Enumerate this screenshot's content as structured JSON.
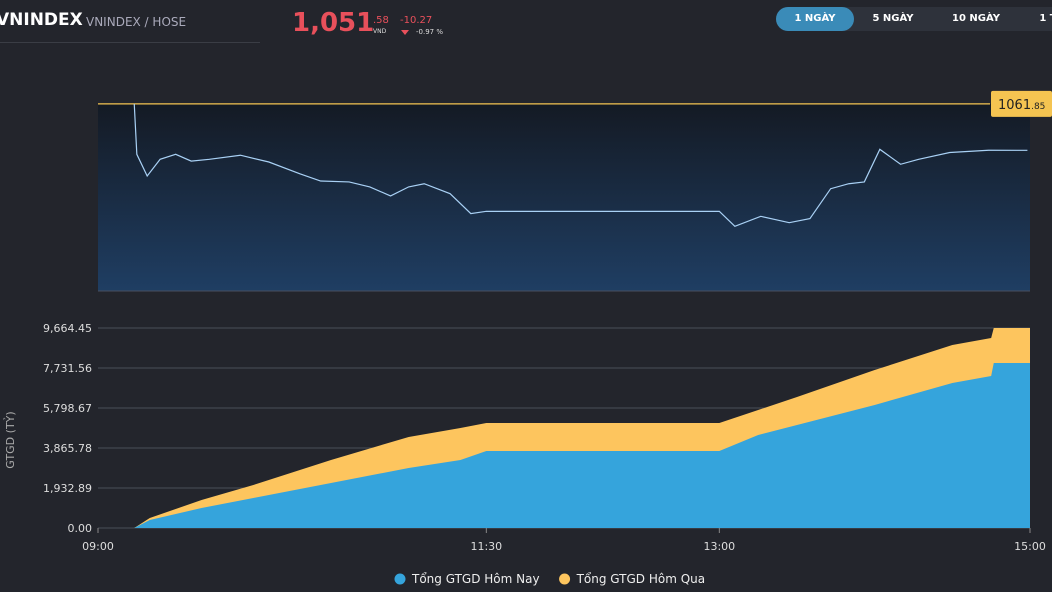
{
  "header": {
    "symbol": "VNINDEX",
    "exchange": "VNINDEX / HOSE",
    "price": "1,051",
    "price_decimal": ".58",
    "unit": "VND",
    "change": "-10.27",
    "change_pct": "-0.97 %"
  },
  "tabs": [
    "1 NGÀY",
    "5 NGÀY",
    "10 NGÀY",
    "1 T"
  ],
  "chart_data": [
    {
      "type": "line",
      "reference": {
        "value": 1061.85,
        "label": "1061",
        "label_decimal": ".85",
        "color": "#f5c451"
      },
      "x": [
        "09:14",
        "09:15",
        "09:19",
        "09:24",
        "09:30",
        "09:36",
        "09:43",
        "09:55",
        "10:06",
        "10:18",
        "10:26",
        "10:37",
        "10:45",
        "10:53",
        "11:00",
        "11:06",
        "11:16",
        "11:24",
        "11:30",
        "13:00",
        "13:06",
        "13:16",
        "13:27",
        "13:35",
        "13:43",
        "13:50",
        "13:56",
        "14:02",
        "14:10",
        "14:17",
        "14:29",
        "14:44",
        "14:59"
      ],
      "series": [
        {
          "name": "VNINDEX",
          "color": "#a9d1f5",
          "values": [
            1061.85,
            1050.7,
            1045.9,
            1049.6,
            1050.7,
            1049.2,
            1049.6,
            1050.5,
            1049.0,
            1046.4,
            1044.8,
            1044.6,
            1043.5,
            1041.5,
            1043.5,
            1044.2,
            1042.0,
            1037.6,
            1038.1,
            1038.1,
            1034.8,
            1037.0,
            1035.6,
            1036.5,
            1043.1,
            1044.2,
            1044.6,
            1051.8,
            1048.5,
            1049.6,
            1051.1,
            1051.6,
            1051.58
          ]
        }
      ],
      "xlim": [
        "09:00",
        "15:00"
      ],
      "ylim": [
        1020.5,
        1062.7
      ]
    },
    {
      "type": "area",
      "y_label": "GTGD (TỶ)",
      "x": [
        "09:00",
        "09:14",
        "09:20",
        "09:40",
        "10:00",
        "10:30",
        "11:00",
        "11:20",
        "11:30",
        "13:00",
        "13:15",
        "13:30",
        "14:00",
        "14:30",
        "14:45",
        "14:46",
        "15:00"
      ],
      "series": [
        {
          "name": "Tổng GTGD Hôm Qua",
          "color": "#fdc55e",
          "values": [
            0,
            0,
            483,
            1353,
            2078,
            3286,
            4398,
            4832,
            5074,
            5074,
            5702,
            6330,
            7635,
            8843,
            9181,
            9664,
            9664
          ]
        },
        {
          "name": "Tổng GTGD Hôm Nay",
          "color": "#35a4dc",
          "values": [
            0,
            0,
            387,
            966,
            1450,
            2175,
            2899,
            3286,
            3721,
            3721,
            4494,
            4977,
            5944,
            7007,
            7345,
            7973,
            7973
          ]
        }
      ],
      "legend_order": [
        1,
        0
      ],
      "xlim": [
        "09:00",
        "15:00"
      ],
      "xticks": [
        "09:00",
        "11:30",
        "13:00",
        "15:00"
      ],
      "ylim": [
        0,
        9664.45
      ],
      "yticks": [
        {
          "value": 0,
          "label": "0.00"
        },
        {
          "value": 1932.89,
          "label": "1,932.89"
        },
        {
          "value": 3865.78,
          "label": "3,865.78"
        },
        {
          "value": 5798.67,
          "label": "5,798.67"
        },
        {
          "value": 7731.56,
          "label": "7,731.56"
        },
        {
          "value": 9664.45,
          "label": "9,664.45"
        }
      ],
      "grid": true
    }
  ]
}
